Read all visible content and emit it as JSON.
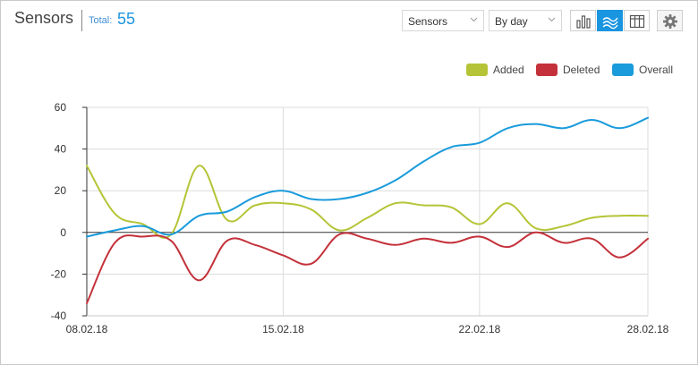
{
  "header": {
    "title": "Sensors",
    "total_label": "Total:",
    "total_value": "55"
  },
  "controls": {
    "metric_select": "Sensors",
    "period_select": "By day",
    "active_view": "line",
    "view_icons": [
      "bar-chart-icon",
      "line-chart-icon",
      "table-icon"
    ],
    "settings_icon": "gear-icon"
  },
  "colors": {
    "accent": "#1a95e0",
    "added": "#b5c436",
    "deleted": "#c4313a",
    "overall": "#1a9bdb"
  },
  "chart_data": {
    "type": "line",
    "title": "",
    "xlabel": "",
    "ylabel": "",
    "ylim": [
      -40,
      60
    ],
    "y_ticks": [
      -40,
      -20,
      0,
      20,
      40,
      60
    ],
    "x_tick_labels": [
      "08.02.18",
      "15.02.18",
      "22.02.18",
      "28.02.18"
    ],
    "x_tick_days": [
      0,
      7,
      14,
      20
    ],
    "grid": true,
    "legend_position": "top-right",
    "x": [
      "08.02.18",
      "09.02.18",
      "10.02.18",
      "11.02.18",
      "12.02.18",
      "13.02.18",
      "14.02.18",
      "15.02.18",
      "16.02.18",
      "17.02.18",
      "18.02.18",
      "19.02.18",
      "20.02.18",
      "21.02.18",
      "22.02.18",
      "23.02.18",
      "24.02.18",
      "25.02.18",
      "26.02.18",
      "27.02.18",
      "28.02.18"
    ],
    "series": [
      {
        "name": "Added",
        "color": "#b5c436",
        "values": [
          32,
          9,
          4,
          -1,
          32,
          6,
          13,
          14,
          11,
          1,
          7,
          14,
          13,
          12,
          4,
          14,
          2,
          3,
          7,
          8,
          8
        ]
      },
      {
        "name": "Deleted",
        "color": "#c4313a",
        "values": [
          -34,
          -5,
          -2,
          -4,
          -23,
          -4,
          -6,
          -11,
          -15,
          -1,
          -3,
          -6,
          -3,
          -5,
          -2,
          -7,
          0,
          -5,
          -3,
          -12,
          -3
        ]
      },
      {
        "name": "Overall",
        "color": "#1a9bdb",
        "values": [
          -2,
          1,
          3,
          -1,
          8,
          10,
          17,
          20,
          16,
          16,
          19,
          25,
          34,
          41,
          43,
          50,
          52,
          50,
          54,
          50,
          55
        ]
      }
    ]
  }
}
